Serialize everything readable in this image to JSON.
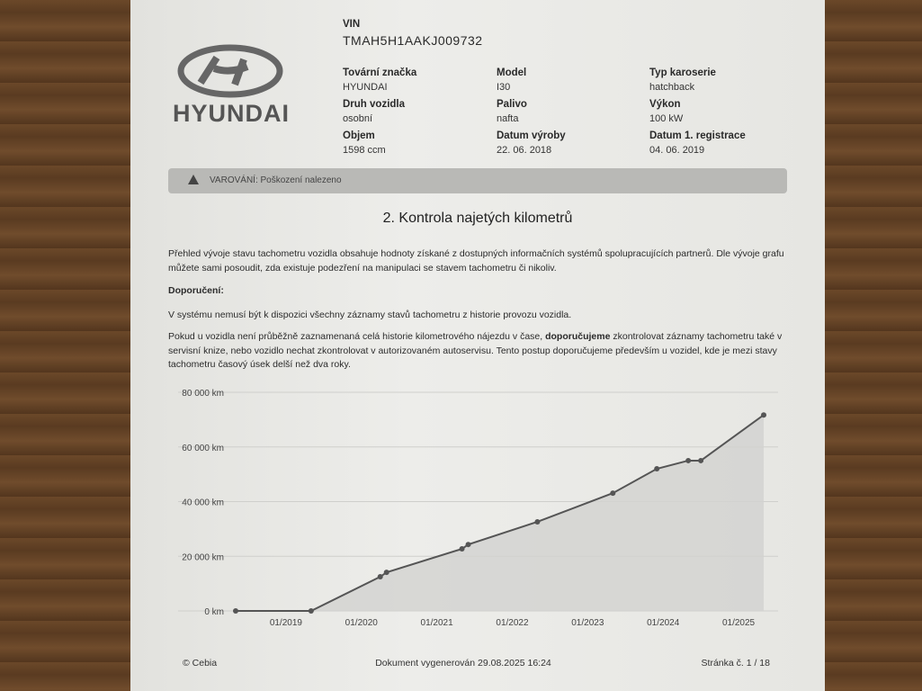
{
  "logo": "HYUNDAI",
  "vin": {
    "label": "VIN",
    "value": "TMAH5H1AAKJ009732"
  },
  "fields": [
    {
      "label": "Tovární značka",
      "value": "HYUNDAI"
    },
    {
      "label": "Druh vozidla",
      "value": "osobní"
    },
    {
      "label": "Objem",
      "value": "1598 ccm"
    },
    {
      "label": "Model",
      "value": "I30"
    },
    {
      "label": "Palivo",
      "value": "nafta"
    },
    {
      "label": "Datum výroby",
      "value": "22. 06. 2018"
    },
    {
      "label": "Typ karoserie",
      "value": "hatchback"
    },
    {
      "label": "Výkon",
      "value": "100 kW"
    },
    {
      "label": "Datum 1. registrace",
      "value": "04. 06. 2019"
    }
  ],
  "warning": "VAROVÁNÍ: Poškození nalezeno",
  "section_title": "2. Kontrola najetých kilometrů",
  "paragraphs": [
    "Přehled vývoje stavu tachometru vozidla obsahuje hodnoty získané z dostupných informačních systémů spolupracujících partnerů. Dle vývoje grafu můžete sami posoudit, zda existuje podezření na manipulaci se stavem tachometru či nikoliv.",
    "Doporučení:",
    "V systému nemusí být k dispozici všechny záznamy stavů tachometru z historie provozu vozidla.",
    [
      "Pokud u vozidla není průběžně zaznamenaná celá historie kilometrového nájezdu v čase, ",
      "doporučujeme",
      " zkontrolovat záznamy tachometru také v servisní knize, nebo vozidlo nechat zkontrolovat v autorizovaném autoservisu. Tento postup doporučujeme především u vozidel, kde je mezi stavy tachometru časový úsek delší než dva roky."
    ]
  ],
  "chart_data": {
    "type": "line",
    "x": [
      "2018-05",
      "2019-05",
      "2020-04",
      "2020-05",
      "2021-05",
      "2021-06",
      "2022-05",
      "2023-05",
      "2023-12",
      "2024-05",
      "2024-07",
      "2025-05"
    ],
    "values": [
      0,
      0,
      12500,
      14100,
      22700,
      24300,
      32600,
      43100,
      52000,
      55000,
      55000,
      71700
    ],
    "color": "#555555",
    "xlim": [
      "2018-04",
      "2025-06"
    ],
    "xticks": [
      {
        "value": "2019-01",
        "label": "01/2019"
      },
      {
        "value": "2020-01",
        "label": "01/2020"
      },
      {
        "value": "2021-01",
        "label": "01/2021"
      },
      {
        "value": "2022-01",
        "label": "01/2022"
      },
      {
        "value": "2023-01",
        "label": "01/2023"
      },
      {
        "value": "2024-01",
        "label": "01/2024"
      },
      {
        "value": "2025-01",
        "label": "01/2025"
      }
    ],
    "ylim": [
      0,
      80000
    ],
    "yticks": [
      {
        "value": 0,
        "label": "0 km"
      },
      {
        "value": 20000,
        "label": "20 000 km"
      },
      {
        "value": 40000,
        "label": "40 000 km"
      },
      {
        "value": 60000,
        "label": "60 000 km"
      },
      {
        "value": 80000,
        "label": "80 000 km"
      }
    ],
    "grid": true
  },
  "footer": {
    "left": "© Cebia",
    "center": "Dokument vygenerován 29.08.2025 16:24",
    "right": "Stránka č. 1 / 18"
  }
}
